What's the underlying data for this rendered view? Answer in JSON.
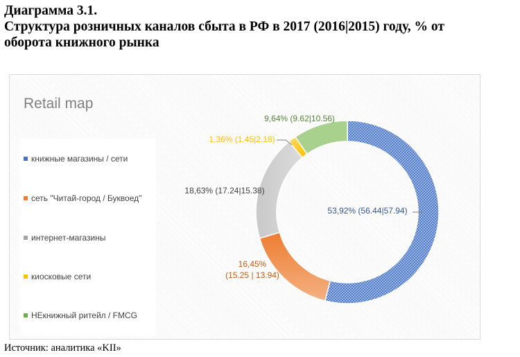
{
  "page": {
    "heading_line1": "Диаграмма 3.1.",
    "heading_line2": "Структура розничных каналов сбыта в РФ в 2017 (2016|2015) году, % от",
    "heading_line3": "оборота книжного рынка",
    "source": "Источник: аналитика «KII»"
  },
  "chart_data": {
    "type": "donut",
    "title": "Retail map",
    "legend_position": "left",
    "series": [
      {
        "name": "книжные магазины / сети",
        "value": 53.92,
        "value_2016": 56.44,
        "value_2015": 57.94,
        "label": "53,92% (56.44|57.94)",
        "color": "#4472c4"
      },
      {
        "name": "сеть \"Читай-город / Буквоед\"",
        "value": 16.45,
        "value_2016": 15.25,
        "value_2015": 13.94,
        "label": "16,45%\n(15.25 | 13.94)",
        "color": "#ed7d31"
      },
      {
        "name": "интернет-магазины",
        "value": 18.63,
        "value_2016": 17.24,
        "value_2015": 15.38,
        "label": "18,63% (17.24|15.38)",
        "color": "#a5a5a5"
      },
      {
        "name": "киосковые сети",
        "value": 1.36,
        "value_2016": 1.45,
        "value_2015": 2.18,
        "label": "1,36% (1.45|2.18)",
        "color": "#ffc000"
      },
      {
        "name": "НЕкнижный ритейл / FMCG",
        "value": 9.64,
        "value_2016": 9.62,
        "value_2015": 10.56,
        "label": "9,64% (9.62|10.56)",
        "color": "#70ad47"
      }
    ]
  }
}
